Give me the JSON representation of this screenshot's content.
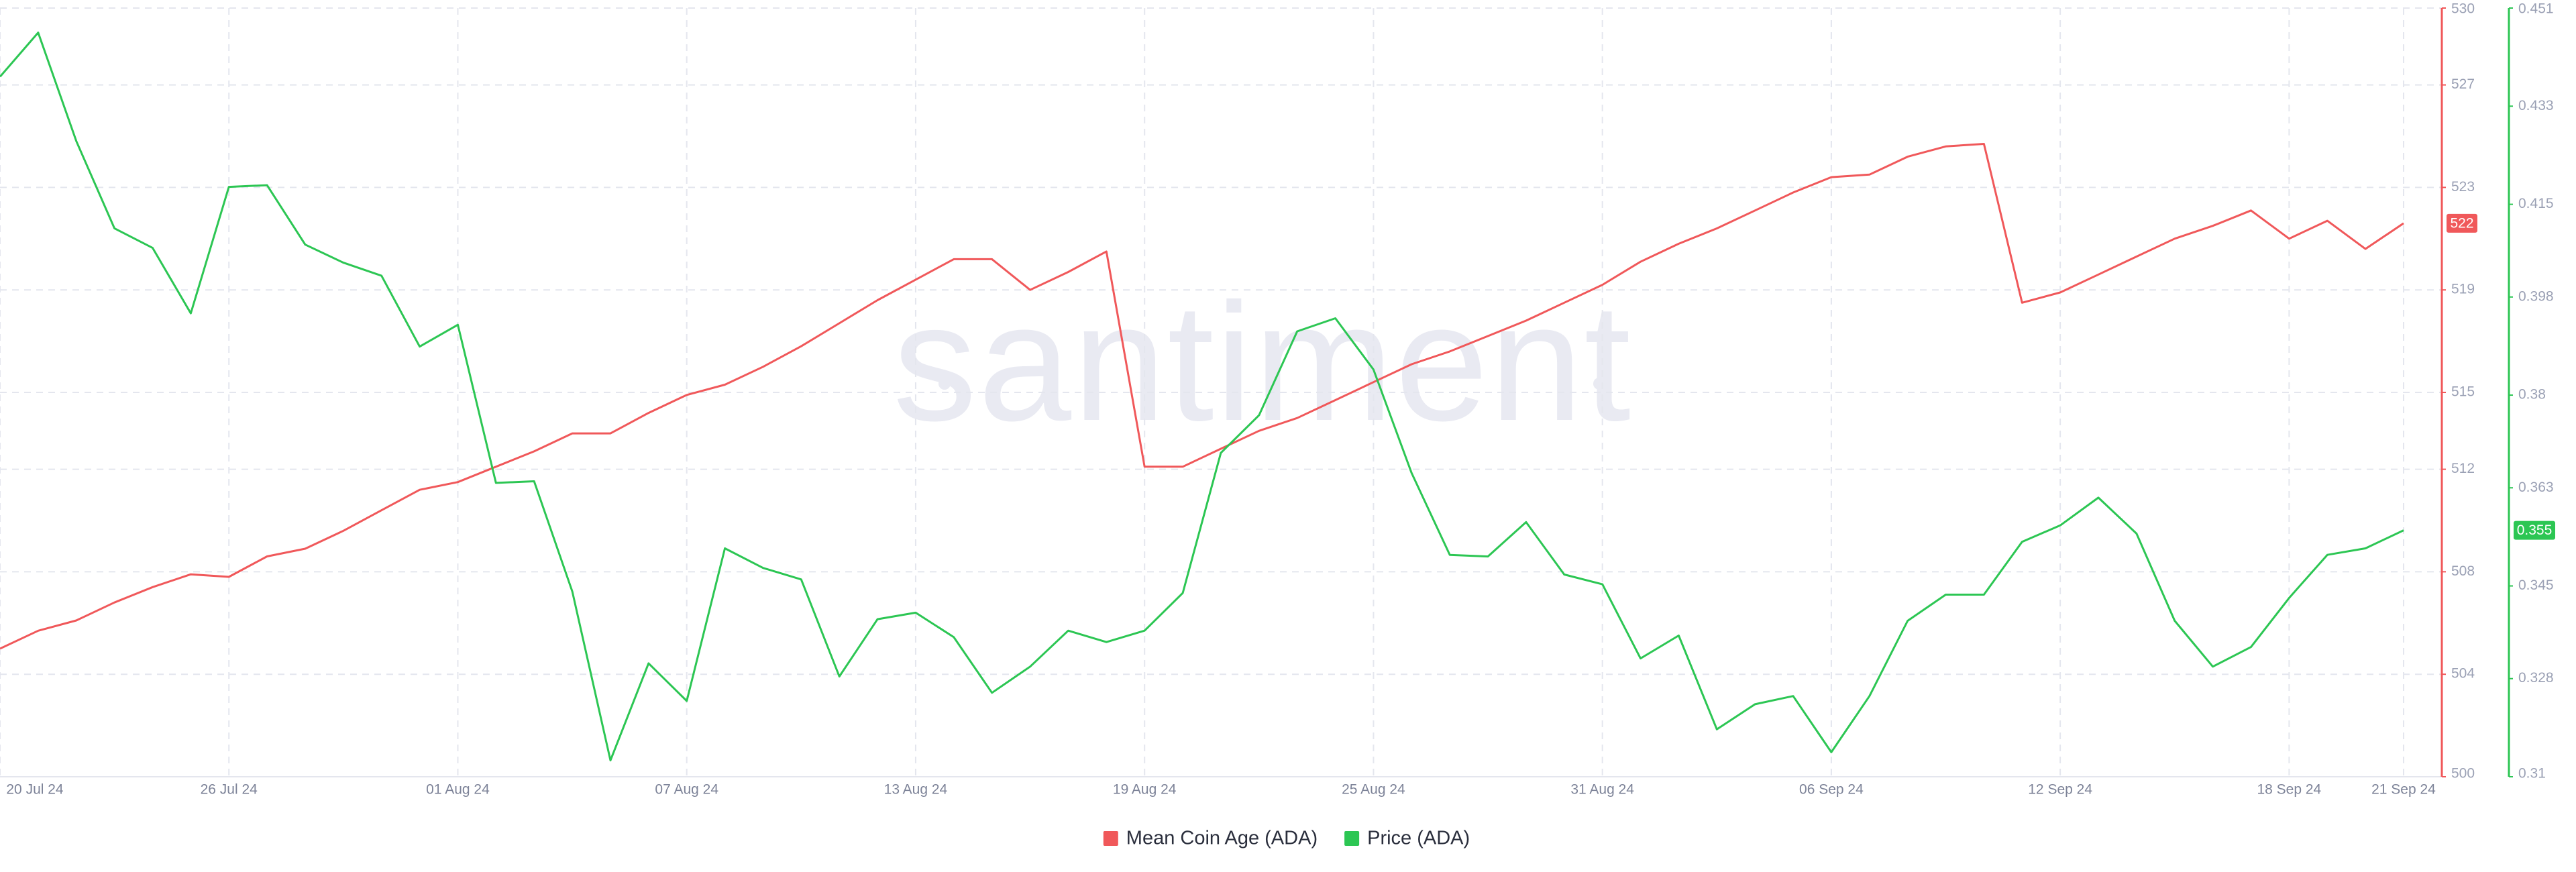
{
  "chart_data": {
    "type": "line",
    "watermark": "santiment",
    "x": [
      "2024-07-20",
      "2024-07-21",
      "2024-07-22",
      "2024-07-23",
      "2024-07-24",
      "2024-07-25",
      "2024-07-26",
      "2024-07-27",
      "2024-07-28",
      "2024-07-29",
      "2024-07-30",
      "2024-07-31",
      "2024-08-01",
      "2024-08-02",
      "2024-08-03",
      "2024-08-04",
      "2024-08-05",
      "2024-08-06",
      "2024-08-07",
      "2024-08-08",
      "2024-08-09",
      "2024-08-10",
      "2024-08-11",
      "2024-08-12",
      "2024-08-13",
      "2024-08-14",
      "2024-08-15",
      "2024-08-16",
      "2024-08-17",
      "2024-08-18",
      "2024-08-19",
      "2024-08-20",
      "2024-08-21",
      "2024-08-22",
      "2024-08-23",
      "2024-08-24",
      "2024-08-25",
      "2024-08-26",
      "2024-08-27",
      "2024-08-28",
      "2024-08-29",
      "2024-08-30",
      "2024-08-31",
      "2024-09-01",
      "2024-09-02",
      "2024-09-03",
      "2024-09-04",
      "2024-09-05",
      "2024-09-06",
      "2024-09-07",
      "2024-09-08",
      "2024-09-09",
      "2024-09-10",
      "2024-09-11",
      "2024-09-12",
      "2024-09-13",
      "2024-09-14",
      "2024-09-15",
      "2024-09-16",
      "2024-09-17",
      "2024-09-18",
      "2024-09-19",
      "2024-09-20",
      "2024-09-21"
    ],
    "xticks": [
      {
        "value": "2024-07-20",
        "label": "20 Jul 24"
      },
      {
        "value": "2024-07-26",
        "label": "26 Jul 24"
      },
      {
        "value": "2024-08-01",
        "label": "01 Aug 24"
      },
      {
        "value": "2024-08-07",
        "label": "07 Aug 24"
      },
      {
        "value": "2024-08-13",
        "label": "13 Aug 24"
      },
      {
        "value": "2024-08-19",
        "label": "19 Aug 24"
      },
      {
        "value": "2024-08-25",
        "label": "25 Aug 24"
      },
      {
        "value": "2024-08-31",
        "label": "31 Aug 24"
      },
      {
        "value": "2024-09-06",
        "label": "06 Sep 24"
      },
      {
        "value": "2024-09-12",
        "label": "12 Sep 24"
      },
      {
        "value": "2024-09-18",
        "label": "18 Sep 24"
      },
      {
        "value": "2024-09-21",
        "label": "21 Sep 24"
      }
    ],
    "ylim": [
      500,
      530
    ],
    "yticks": [
      500,
      504,
      508,
      512,
      515,
      519,
      523,
      527,
      530
    ],
    "y2lim": [
      0.31,
      0.451
    ],
    "y2ticks": [
      0.31,
      0.328,
      0.345,
      0.363,
      0.38,
      0.398,
      0.415,
      0.433,
      0.451
    ],
    "grid": true,
    "legend": "bottom",
    "series": [
      {
        "name": "Mean Coin Age (ADA)",
        "color": "#f0585a",
        "axis": "y",
        "last_value_label": "522",
        "values": [
          505.0,
          505.7,
          506.1,
          506.8,
          507.4,
          507.9,
          507.8,
          508.6,
          508.9,
          509.6,
          510.4,
          511.2,
          511.5,
          512.1,
          512.7,
          513.4,
          513.4,
          514.2,
          514.9,
          515.3,
          516.0,
          516.8,
          517.7,
          518.6,
          519.4,
          520.2,
          520.2,
          519.0,
          519.7,
          520.5,
          512.1,
          512.1,
          512.8,
          513.5,
          514.0,
          514.7,
          515.4,
          516.1,
          516.6,
          517.2,
          517.8,
          518.5,
          519.2,
          520.1,
          520.8,
          521.4,
          522.1,
          522.8,
          523.4,
          523.5,
          524.2,
          524.6,
          524.7,
          518.5,
          518.9,
          519.6,
          520.3,
          521.0,
          521.5,
          522.1,
          521.0,
          521.7,
          520.6,
          521.6
        ]
      },
      {
        "name": "Price (ADA)",
        "color": "#2cc653",
        "axis": "y2",
        "last_value_label": "0.355",
        "values": [
          0.4384,
          0.4465,
          0.4266,
          0.4106,
          0.407,
          0.395,
          0.4182,
          0.4185,
          0.4076,
          0.4043,
          0.4019,
          0.3889,
          0.3929,
          0.3639,
          0.3642,
          0.344,
          0.313,
          0.3308,
          0.3239,
          0.3519,
          0.3483,
          0.3462,
          0.3284,
          0.3389,
          0.3401,
          0.3356,
          0.3254,
          0.3302,
          0.3368,
          0.3347,
          0.3368,
          0.3437,
          0.3694,
          0.3763,
          0.3917,
          0.3941,
          0.3847,
          0.3657,
          0.3507,
          0.3504,
          0.3567,
          0.3471,
          0.3453,
          0.3317,
          0.3359,
          0.3187,
          0.3233,
          0.3248,
          0.3145,
          0.3248,
          0.3386,
          0.3434,
          0.3434,
          0.3531,
          0.3561,
          0.3612,
          0.3546,
          0.3386,
          0.3302,
          0.3338,
          0.3428,
          0.3507,
          0.3519,
          0.3552
        ]
      }
    ]
  }
}
